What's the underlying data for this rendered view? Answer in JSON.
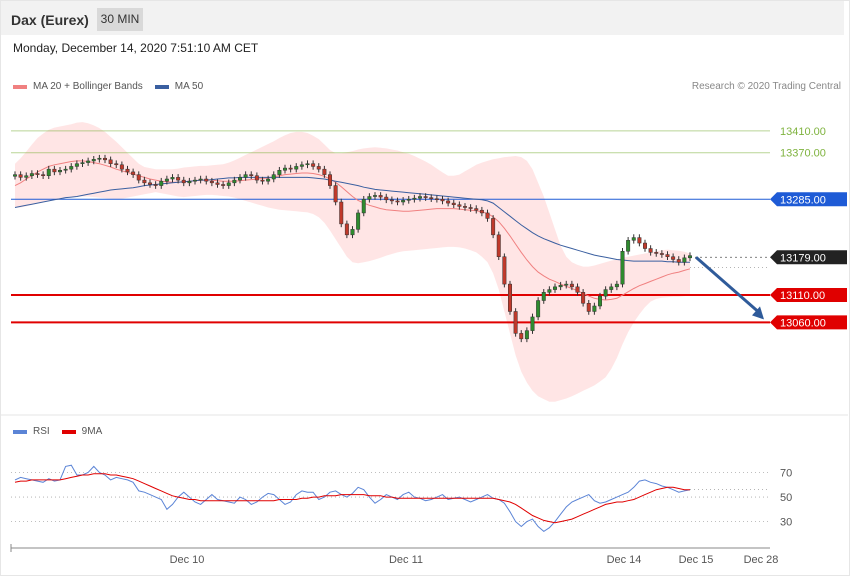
{
  "header": {
    "instrument": "Dax (Eurex)",
    "timeframe": "30 MIN"
  },
  "date_line": "Monday, December 14, 2020 7:51:10 AM CET",
  "copyright": "Research © 2020 Trading Central",
  "colors": {
    "bollinger": "#f08080",
    "ma50": "#3a5fa0",
    "resistance": "#7fb33f",
    "pivot": "#1e5bd6",
    "support": "#e00000",
    "price": "#333333",
    "arrow": "#2f5b9a",
    "rsi": "#5b84d6",
    "rsi_ma": "#e00000"
  },
  "chart_data": [
    {
      "type": "line",
      "title": "",
      "legend": [
        {
          "name": "MA 20 + Bollinger Bands",
          "color": "#f08080"
        },
        {
          "name": "MA 50",
          "color": "#3a5fa0"
        }
      ],
      "x_ticks": [
        "Dec 10",
        "Dec 11",
        "Dec 14",
        "Dec 15",
        "Dec 28"
      ],
      "ylim": [
        12900,
        13470
      ],
      "levels": [
        {
          "label": "13410.00",
          "value": 13410,
          "kind": "resistance"
        },
        {
          "label": "13370.00",
          "value": 13370,
          "kind": "resistance"
        },
        {
          "label": "13285.00",
          "value": 13285,
          "kind": "pivot"
        },
        {
          "label": "13179.00",
          "value": 13179,
          "kind": "price"
        },
        {
          "label": "13110.00",
          "value": 13110,
          "kind": "support"
        },
        {
          "label": "13060.00",
          "value": 13060,
          "kind": "support"
        }
      ],
      "close": [
        13330,
        13325,
        13328,
        13332,
        13330,
        13328,
        13340,
        13335,
        13338,
        13340,
        13345,
        13350,
        13352,
        13355,
        13358,
        13360,
        13357,
        13350,
        13348,
        13340,
        13335,
        13330,
        13320,
        13315,
        13312,
        13310,
        13318,
        13322,
        13325,
        13320,
        13315,
        13318,
        13320,
        13322,
        13318,
        13315,
        13312,
        13310,
        13315,
        13320,
        13325,
        13330,
        13328,
        13320,
        13318,
        13322,
        13330,
        13338,
        13342,
        13340,
        13345,
        13348,
        13350,
        13345,
        13340,
        13330,
        13310,
        13280,
        13240,
        13220,
        13230,
        13260,
        13285,
        13290,
        13292,
        13289,
        13284,
        13282,
        13280,
        13283,
        13285,
        13287,
        13290,
        13288,
        13286,
        13285,
        13282,
        13278,
        13275,
        13272,
        13270,
        13268,
        13265,
        13260,
        13250,
        13220,
        13180,
        13130,
        13080,
        13040,
        13030,
        13045,
        13070,
        13100,
        13115,
        13120,
        13125,
        13128,
        13130,
        13125,
        13115,
        13095,
        13080,
        13090,
        13108,
        13120,
        13125,
        13130,
        13190,
        13210,
        13215,
        13205,
        13195,
        13188,
        13186,
        13184,
        13180,
        13175,
        13170,
        13178,
        13182
      ],
      "ma20": [
        13310,
        13315,
        13322,
        13328,
        13335,
        13340,
        13345,
        13348,
        13350,
        13352,
        13354,
        13355,
        13355,
        13354,
        13352,
        13350,
        13347,
        13344,
        13340,
        13337,
        13334,
        13331,
        13328,
        13325,
        13322,
        13320,
        13318,
        13317,
        13316,
        13316,
        13317,
        13318,
        13319,
        13320,
        13320,
        13320,
        13319,
        13318,
        13318,
        13318,
        13319,
        13320,
        13321,
        13322,
        13323,
        13324,
        13326,
        13328,
        13330,
        13331,
        13332,
        13333,
        13333,
        13332,
        13330,
        13327,
        13322,
        13316,
        13308,
        13299,
        13290,
        13283,
        13278,
        13274,
        13271,
        13268,
        13266,
        13265,
        13264,
        13263,
        13263,
        13264,
        13265,
        13266,
        13267,
        13268,
        13268,
        13268,
        13268,
        13267,
        13266,
        13265,
        13264,
        13262,
        13259,
        13253,
        13244,
        13232,
        13218,
        13203,
        13188,
        13174,
        13162,
        13152,
        13145,
        13139,
        13135,
        13130,
        13126,
        13122,
        13118,
        13113,
        13108,
        13104,
        13102,
        13101,
        13102,
        13104,
        13110,
        13116,
        13122,
        13127,
        13131,
        13135,
        13139,
        13143,
        13147,
        13150,
        13152,
        13155,
        13158
      ],
      "bb_upper": [
        13350,
        13360,
        13372,
        13385,
        13397,
        13405,
        13412,
        13416,
        13418,
        13420,
        13422,
        13425,
        13426,
        13424,
        13420,
        13415,
        13408,
        13399,
        13390,
        13380,
        13370,
        13360,
        13350,
        13344,
        13342,
        13340,
        13340,
        13340,
        13340,
        13341,
        13343,
        13344,
        13345,
        13346,
        13346,
        13347,
        13348,
        13349,
        13352,
        13356,
        13361,
        13366,
        13371,
        13376,
        13381,
        13386,
        13391,
        13397,
        13402,
        13406,
        13408,
        13408,
        13406,
        13401,
        13395,
        13385,
        13375,
        13369,
        13369,
        13371,
        13373,
        13376,
        13378,
        13379,
        13380,
        13379,
        13378,
        13376,
        13374,
        13371,
        13368,
        13364,
        13359,
        13354,
        13348,
        13341,
        13334,
        13328,
        13328,
        13330,
        13336,
        13342,
        13348,
        13352,
        13355,
        13358,
        13360,
        13362,
        13363,
        13364,
        13362,
        13355,
        13340,
        13315,
        13290,
        13260,
        13230,
        13200,
        13180,
        13170,
        13165,
        13162,
        13162,
        13164,
        13167,
        13170,
        13173,
        13175,
        13178,
        13180,
        13182,
        13184,
        13186,
        13188,
        13190,
        13192,
        13193,
        13192,
        13191,
        13189,
        13186
      ],
      "bb_lower": [
        13270,
        13270,
        13272,
        13275,
        13278,
        13280,
        13283,
        13285,
        13287,
        13289,
        13290,
        13290,
        13290,
        13290,
        13289,
        13288,
        13287,
        13286,
        13285,
        13286,
        13288,
        13290,
        13292,
        13294,
        13296,
        13298,
        13296,
        13294,
        13292,
        13290,
        13289,
        13290,
        13291,
        13292,
        13293,
        13293,
        13292,
        13291,
        13290,
        13288,
        13285,
        13282,
        13279,
        13276,
        13273,
        13270,
        13268,
        13266,
        13265,
        13264,
        13263,
        13262,
        13261,
        13258,
        13252,
        13242,
        13228,
        13212,
        13196,
        13180,
        13170,
        13168,
        13170,
        13172,
        13175,
        13178,
        13182,
        13185,
        13188,
        13190,
        13191,
        13192,
        13193,
        13194,
        13195,
        13196,
        13197,
        13198,
        13198,
        13197,
        13195,
        13192,
        13188,
        13180,
        13170,
        13150,
        13120,
        13080,
        13040,
        13000,
        12970,
        12950,
        12935,
        12925,
        12920,
        12915,
        12915,
        12918,
        12921,
        12925,
        12930,
        12935,
        12940,
        12945,
        12952,
        12960,
        12975,
        12995,
        13020,
        13042,
        13060,
        13075,
        13088,
        13098,
        13103,
        13105,
        13106,
        13107,
        13107,
        13108,
        13110
      ],
      "ma50": [
        13270,
        13272,
        13274,
        13276,
        13278,
        13280,
        13282,
        13284,
        13286,
        13288,
        13289,
        13290,
        13292,
        13294,
        13296,
        13298,
        13300,
        13302,
        13303,
        13304,
        13305,
        13306,
        13308,
        13310,
        13311,
        13312,
        13313,
        13314,
        13315,
        13316,
        13317,
        13318,
        13319,
        13320,
        13320,
        13321,
        13322,
        13323,
        13324,
        13324,
        13325,
        13325,
        13325,
        13325,
        13325,
        13325,
        13325,
        13325,
        13325,
        13325,
        13325,
        13325,
        13325,
        13324,
        13323,
        13322,
        13320,
        13318,
        13316,
        13314,
        13312,
        13310,
        13307,
        13305,
        13303,
        13302,
        13301,
        13300,
        13299,
        13298,
        13297,
        13296,
        13295,
        13294,
        13293,
        13292,
        13291,
        13290,
        13289,
        13288,
        13287,
        13286,
        13285,
        13284,
        13282,
        13278,
        13270,
        13262,
        13254,
        13246,
        13238,
        13231,
        13224,
        13218,
        13213,
        13209,
        13205,
        13201,
        13198,
        13195,
        13192,
        13189,
        13186,
        13183,
        13181,
        13179,
        13177,
        13175,
        13174,
        13173,
        13172,
        13172,
        13172,
        13172,
        13172,
        13172,
        13171,
        13171,
        13170,
        13170,
        13170
      ]
    },
    {
      "type": "line",
      "title": "",
      "legend": [
        {
          "name": "RSI",
          "color": "#5b84d6"
        },
        {
          "name": "9MA",
          "color": "#e00000"
        }
      ],
      "ylim": [
        15,
        90
      ],
      "y_ticks": [
        70,
        50,
        30
      ],
      "rsi": [
        64,
        66,
        65,
        64,
        63,
        62,
        65,
        63,
        64,
        75,
        76,
        68,
        68,
        70,
        75,
        70,
        68,
        64,
        66,
        65,
        64,
        62,
        55,
        54,
        52,
        50,
        48,
        40,
        44,
        50,
        54,
        50,
        46,
        44,
        48,
        52,
        48,
        47,
        46,
        45,
        50,
        48,
        44,
        46,
        50,
        53,
        52,
        48,
        44,
        46,
        52,
        55,
        54,
        54,
        48,
        50,
        54,
        55,
        52,
        50,
        53,
        58,
        56,
        50,
        45,
        48,
        52,
        50,
        48,
        52,
        54,
        50,
        49,
        47,
        48,
        50,
        52,
        48,
        49,
        50,
        48,
        46,
        48,
        50,
        52,
        49,
        48,
        45,
        38,
        30,
        26,
        30,
        32,
        26,
        22,
        25,
        30,
        36,
        42,
        46,
        48,
        50,
        52,
        47,
        45,
        46,
        48,
        50,
        52,
        54,
        58,
        63,
        64,
        62,
        61,
        59,
        58,
        56,
        54,
        55,
        56
      ],
      "rsi_ma": [
        62,
        63,
        63,
        64,
        64,
        64,
        64,
        64,
        64,
        65,
        66,
        67,
        68,
        68,
        69,
        69,
        69,
        68,
        68,
        67,
        66,
        65,
        63,
        61,
        59,
        57,
        55,
        53,
        51,
        50,
        49,
        48,
        48,
        47,
        47,
        47,
        47,
        47,
        47,
        47,
        47,
        47,
        47,
        47,
        47,
        47,
        47,
        48,
        48,
        48,
        48,
        49,
        49,
        50,
        50,
        51,
        51,
        51,
        52,
        52,
        52,
        52,
        52,
        51,
        51,
        51,
        50,
        50,
        49,
        49,
        49,
        49,
        49,
        49,
        49,
        49,
        49,
        49,
        49,
        49,
        49,
        49,
        49,
        49,
        49,
        49,
        48,
        47,
        46,
        44,
        41,
        38,
        35,
        33,
        31,
        30,
        29,
        30,
        31,
        32,
        34,
        36,
        38,
        40,
        42,
        44,
        45,
        46,
        46,
        47,
        48,
        50,
        52,
        54,
        56,
        57,
        58,
        58,
        57,
        56,
        56
      ]
    }
  ]
}
